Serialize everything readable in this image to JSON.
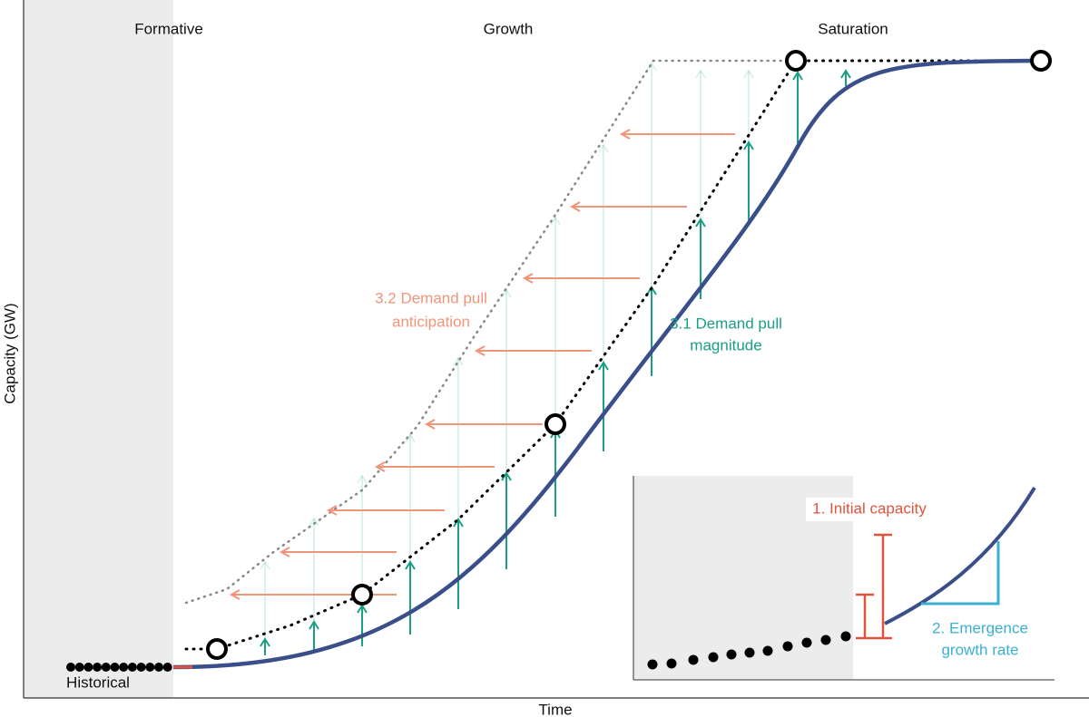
{
  "phases": [
    "Formative",
    "Growth",
    "Saturation"
  ],
  "axes": {
    "y_label": "Capacity (GW)",
    "x_label": "Time"
  },
  "labels": {
    "historical": "Historical",
    "anticipation": [
      "3.2 Demand pull",
      "anticipation"
    ],
    "magnitude": [
      "3.1 Demand pull",
      "magnitude"
    ]
  },
  "inset": {
    "initial_capacity": "1. Initial capacity",
    "growth_rate": [
      "2. Emergence",
      "growth rate"
    ]
  }
}
